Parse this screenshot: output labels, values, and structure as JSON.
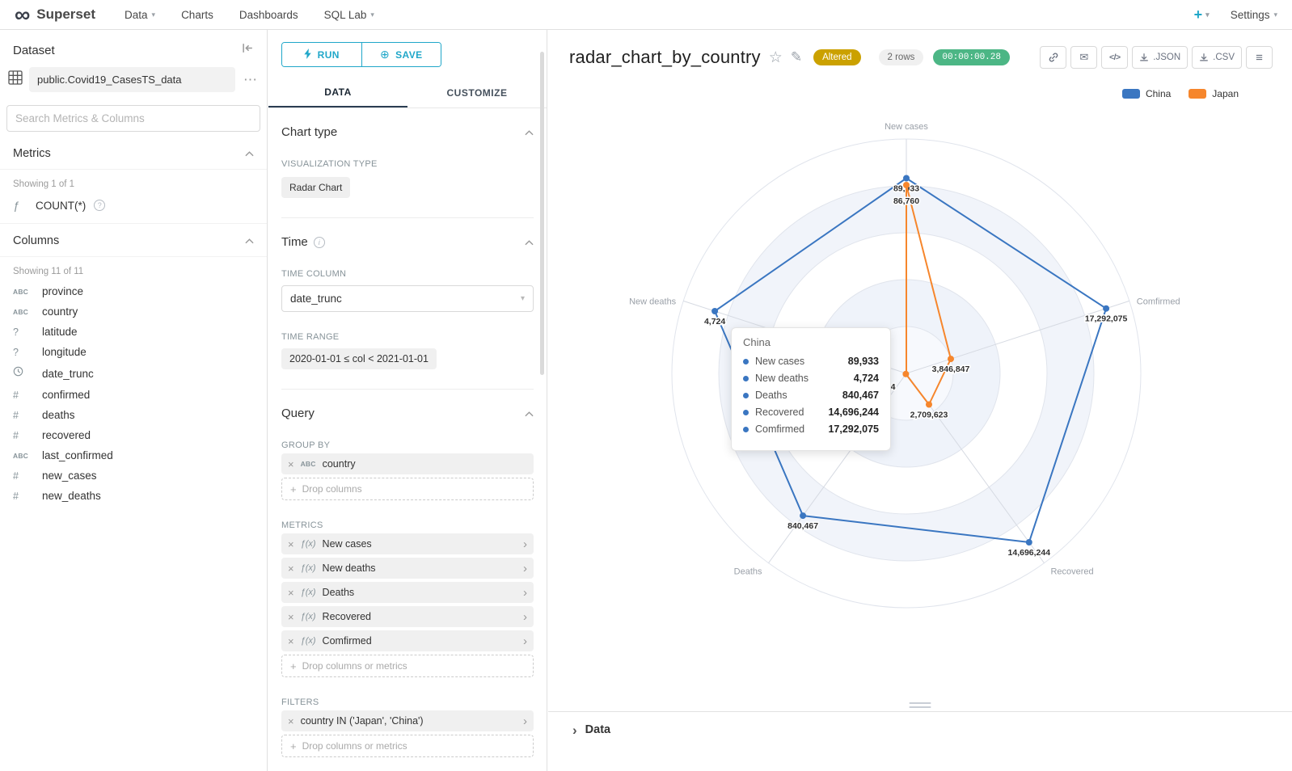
{
  "navbar": {
    "brand": "Superset",
    "items": [
      {
        "label": "Data",
        "caret": true
      },
      {
        "label": "Charts",
        "caret": false
      },
      {
        "label": "Dashboards",
        "caret": false
      },
      {
        "label": "SQL Lab",
        "caret": true
      }
    ],
    "settings_label": "Settings"
  },
  "icons": {
    "infinity": "∞",
    "caret_down": "▾",
    "plus": "+",
    "dots": "⋯",
    "close": "×",
    "caret_right": "›",
    "abc": "ABC",
    "hash": "#",
    "question": "?",
    "fx": "ƒ(x)",
    "fn": "ƒ",
    "help": "?",
    "info": "i",
    "star": "☆",
    "pencil": "✎",
    "envelope": "✉",
    "code": "</>",
    "hamburger": "≡",
    "plus_circle": "⊕",
    "fold_caret": "›"
  },
  "dataset_panel": {
    "title": "Dataset",
    "dataset_name": "public.Covid19_CasesTS_data",
    "search_placeholder": "Search Metrics & Columns",
    "metrics": {
      "header": "Metrics",
      "showing": "Showing 1 of 1",
      "items": [
        {
          "icon": "function",
          "label": "COUNT(*)"
        }
      ]
    },
    "columns": {
      "header": "Columns",
      "showing": "Showing 11 of 11",
      "items": [
        {
          "type": "ABC",
          "label": "province"
        },
        {
          "type": "ABC",
          "label": "country"
        },
        {
          "type": "?",
          "label": "latitude"
        },
        {
          "type": "?",
          "label": "longitude"
        },
        {
          "type": "clock",
          "label": "date_trunc"
        },
        {
          "type": "#",
          "label": "confirmed"
        },
        {
          "type": "#",
          "label": "deaths"
        },
        {
          "type": "#",
          "label": "recovered"
        },
        {
          "type": "ABC",
          "label": "last_confirmed"
        },
        {
          "type": "#",
          "label": "new_cases"
        },
        {
          "type": "#",
          "label": "new_deaths"
        }
      ]
    }
  },
  "control_panel": {
    "run_label": "RUN",
    "save_label": "SAVE",
    "tabs": [
      "DATA",
      "CUSTOMIZE"
    ],
    "active_tab": "DATA",
    "chart_type": {
      "header": "Chart type",
      "viz_type_label": "VISUALIZATION TYPE",
      "viz_type_value": "Radar Chart"
    },
    "time": {
      "header": "Time",
      "time_column_label": "TIME COLUMN",
      "time_column_value": "date_trunc",
      "time_range_label": "TIME RANGE",
      "time_range_value": "2020-01-01 ≤ col < 2021-01-01"
    },
    "query": {
      "header": "Query",
      "group_by_label": "GROUP BY",
      "group_by_items": [
        "country"
      ],
      "group_by_drop": "Drop columns",
      "metrics_label": "METRICS",
      "metrics_items": [
        "New cases",
        "New deaths",
        "Deaths",
        "Recovered",
        "Comfirmed"
      ],
      "metrics_drop": "Drop columns or metrics",
      "filters_label": "FILTERS",
      "filters_items": [
        "country IN ('Japan', 'China')"
      ],
      "filters_drop": "Drop columns or metrics"
    }
  },
  "chart_header": {
    "title": "radar_chart_by_country",
    "altered_badge": "Altered",
    "rows_badge": "2 rows",
    "timer_badge": "00:00:00.28",
    "export_json_label": ".JSON",
    "export_csv_label": ".CSV"
  },
  "tooltip": {
    "title": "China",
    "rows": [
      {
        "label": "New cases",
        "value": "89,933"
      },
      {
        "label": "New deaths",
        "value": "4,724"
      },
      {
        "label": "Deaths",
        "value": "840,467"
      },
      {
        "label": "Recovered",
        "value": "14,696,244"
      },
      {
        "label": "Comfirmed",
        "value": "17,292,075"
      }
    ]
  },
  "footer": {
    "data_label": "Data"
  },
  "chart_data": {
    "type": "radar",
    "title": "radar_chart_by_country",
    "shape": "circle",
    "levels": 5,
    "legend_position": "top-right",
    "axes": [
      {
        "name": "New cases",
        "max": 108000
      },
      {
        "name": "Comfirmed",
        "max": 19300000
      },
      {
        "name": "Recovered",
        "max": 16500000
      },
      {
        "name": "Deaths",
        "max": 1120000
      },
      {
        "name": "New deaths",
        "max": 5500
      }
    ],
    "series": [
      {
        "name": "China",
        "color": "#3a76c1",
        "values": [
          89933,
          17292075,
          14696244,
          840467,
          4724
        ],
        "labels": [
          "89,933",
          "17,292,075",
          "14,696,244",
          "840,467",
          "4,724"
        ]
      },
      {
        "name": "Japan",
        "color": "#f6862c",
        "values": [
          86760,
          3846847,
          2709623,
          3734,
          null
        ],
        "labels": [
          "86,760",
          "3,846,847",
          "2,709,623",
          "3,734",
          null
        ]
      }
    ]
  }
}
